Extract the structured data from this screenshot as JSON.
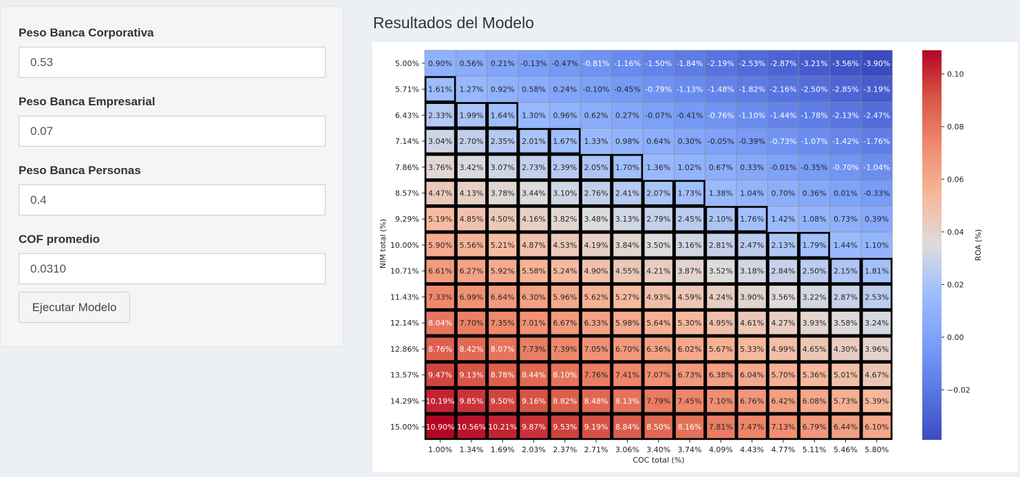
{
  "sidebar": {
    "fields": [
      {
        "label": "Peso Banca Corporativa",
        "value": "0.53"
      },
      {
        "label": "Peso Banca Empresarial",
        "value": "0.07"
      },
      {
        "label": "Peso Banca Personas",
        "value": "0.4"
      },
      {
        "label": "COF promedio",
        "value": "0.0310"
      }
    ],
    "run_button_label": "Ejecutar Modelo"
  },
  "main": {
    "title": "Resultados del Modelo"
  },
  "chart_data": {
    "type": "heatmap",
    "xlabel": "COC total (%)",
    "ylabel": "NIM total (%)",
    "colorbar_label": "ROA (%)",
    "x_categories": [
      "1.00%",
      "1.34%",
      "1.69%",
      "2.03%",
      "2.37%",
      "2.71%",
      "3.06%",
      "3.40%",
      "3.74%",
      "4.09%",
      "4.43%",
      "4.77%",
      "5.11%",
      "5.46%",
      "5.80%"
    ],
    "y_categories": [
      "5.00%",
      "5.71%",
      "6.43%",
      "7.14%",
      "7.86%",
      "8.57%",
      "9.29%",
      "10.00%",
      "10.71%",
      "11.43%",
      "12.14%",
      "12.86%",
      "13.57%",
      "14.29%",
      "15.00%"
    ],
    "values": [
      [
        0.9,
        0.56,
        0.21,
        -0.13,
        -0.47,
        -0.81,
        -1.16,
        -1.5,
        -1.84,
        -2.19,
        -2.53,
        -2.87,
        -3.21,
        -3.56,
        -3.9
      ],
      [
        1.61,
        1.27,
        0.92,
        0.58,
        0.24,
        -0.1,
        -0.45,
        -0.79,
        -1.13,
        -1.48,
        -1.82,
        -2.16,
        -2.5,
        -2.85,
        -3.19
      ],
      [
        2.33,
        1.99,
        1.64,
        1.3,
        0.96,
        0.62,
        0.27,
        -0.07,
        -0.41,
        -0.76,
        -1.1,
        -1.44,
        -1.78,
        -2.13,
        -2.47
      ],
      [
        3.04,
        2.7,
        2.35,
        2.01,
        1.67,
        1.33,
        0.98,
        0.64,
        0.3,
        -0.05,
        -0.39,
        -0.73,
        -1.07,
        -1.42,
        -1.76
      ],
      [
        3.76,
        3.42,
        3.07,
        2.73,
        2.39,
        2.05,
        1.7,
        1.36,
        1.02,
        0.67,
        0.33,
        -0.01,
        -0.35,
        -0.7,
        -1.04
      ],
      [
        4.47,
        4.13,
        3.78,
        3.44,
        3.1,
        2.76,
        2.41,
        2.07,
        1.73,
        1.38,
        1.04,
        0.7,
        0.36,
        0.01,
        -0.33
      ],
      [
        5.19,
        4.85,
        4.5,
        4.16,
        3.82,
        3.48,
        3.13,
        2.79,
        2.45,
        2.1,
        1.76,
        1.42,
        1.08,
        0.73,
        0.39
      ],
      [
        5.9,
        5.56,
        5.21,
        4.87,
        4.53,
        4.19,
        3.84,
        3.5,
        3.16,
        2.81,
        2.47,
        2.13,
        1.79,
        1.44,
        1.1
      ],
      [
        6.61,
        6.27,
        5.92,
        5.58,
        5.24,
        4.9,
        4.55,
        4.21,
        3.87,
        3.52,
        3.18,
        2.84,
        2.5,
        2.15,
        1.81
      ],
      [
        7.33,
        6.99,
        6.64,
        6.3,
        5.96,
        5.62,
        5.27,
        4.93,
        4.59,
        4.24,
        3.9,
        3.56,
        3.22,
        2.87,
        2.53
      ],
      [
        8.04,
        7.7,
        7.35,
        7.01,
        6.67,
        6.33,
        5.98,
        5.64,
        5.3,
        4.95,
        4.61,
        4.27,
        3.93,
        3.58,
        3.24
      ],
      [
        8.76,
        8.42,
        8.07,
        7.73,
        7.39,
        7.05,
        6.7,
        6.36,
        6.02,
        5.67,
        5.33,
        4.99,
        4.65,
        4.3,
        3.96
      ],
      [
        9.47,
        9.13,
        8.78,
        8.44,
        8.1,
        7.76,
        7.41,
        7.07,
        6.73,
        6.38,
        6.04,
        5.7,
        5.36,
        5.01,
        4.67
      ],
      [
        10.19,
        9.85,
        9.5,
        9.16,
        8.82,
        8.48,
        8.13,
        7.79,
        7.45,
        7.1,
        6.76,
        6.42,
        6.08,
        5.73,
        5.39
      ],
      [
        10.9,
        10.56,
        10.21,
        9.87,
        9.53,
        9.19,
        8.84,
        8.5,
        8.16,
        7.81,
        7.47,
        7.13,
        6.79,
        6.44,
        6.1
      ]
    ],
    "highlight_threshold": 1.5,
    "color_scale": {
      "colormap": "coolwarm",
      "min": -0.039,
      "max": 0.109
    },
    "colorbar_ticks": [
      "−0.02",
      "0.00",
      "0.02",
      "0.04",
      "0.06",
      "0.08",
      "0.10"
    ],
    "colorbar_tick_values": [
      -0.02,
      0.0,
      0.02,
      0.04,
      0.06,
      0.08,
      0.1
    ],
    "grid": true
  }
}
